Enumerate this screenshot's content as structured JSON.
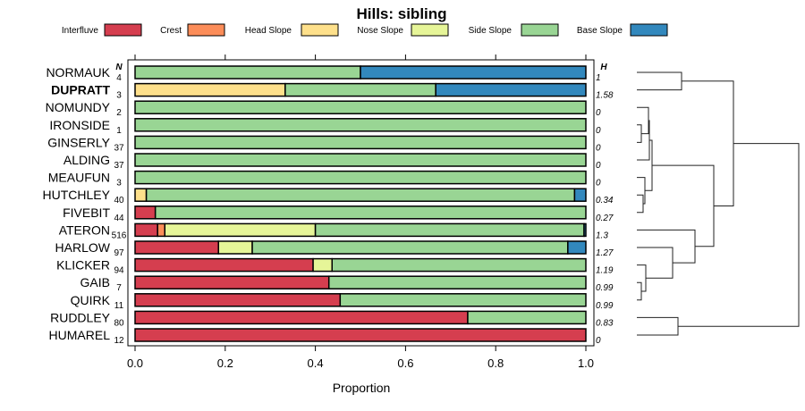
{
  "chart_data": {
    "type": "bar",
    "subtype": "stacked-horizontal-proportion",
    "title": "Hills: sibling",
    "xlabel": "Proportion",
    "xlim": [
      0,
      1
    ],
    "xticks": [
      "0.0",
      "0.2",
      "0.4",
      "0.6",
      "0.8",
      "1.0"
    ],
    "xtick_values": [
      0,
      0.2,
      0.4,
      0.6,
      0.8,
      1.0
    ],
    "n_header": "N",
    "h_header": "H",
    "legend_position": "top",
    "legend": [
      {
        "name": "Interfluve",
        "color": "#D53E4F"
      },
      {
        "name": "Crest",
        "color": "#FC8D59"
      },
      {
        "name": "Head Slope",
        "color": "#FEE08B"
      },
      {
        "name": "Nose Slope",
        "color": "#E6F598"
      },
      {
        "name": "Side Slope",
        "color": "#99D594"
      },
      {
        "name": "Base Slope",
        "color": "#3288BD"
      }
    ],
    "highlight": "DUPRATT",
    "rows": [
      {
        "name": "NORMAUK",
        "n": "4",
        "h": "1",
        "values": [
          0,
          0,
          0,
          0,
          0.5,
          0.5
        ]
      },
      {
        "name": "DUPRATT",
        "n": "3",
        "h": "1.58",
        "values": [
          0,
          0,
          0.333,
          0,
          0.334,
          0.333
        ]
      },
      {
        "name": "NOMUNDY",
        "n": "2",
        "h": "0",
        "values": [
          0,
          0,
          0,
          0,
          1,
          0
        ]
      },
      {
        "name": "IRONSIDE",
        "n": "1",
        "h": "0",
        "values": [
          0,
          0,
          0,
          0,
          1,
          0
        ]
      },
      {
        "name": "GINSERLY",
        "n": "37",
        "h": "0",
        "values": [
          0,
          0,
          0,
          0,
          1,
          0
        ]
      },
      {
        "name": "ALDING",
        "n": "37",
        "h": "0",
        "values": [
          0,
          0,
          0,
          0,
          1,
          0
        ]
      },
      {
        "name": "MEAUFUN",
        "n": "3",
        "h": "0",
        "values": [
          0,
          0,
          0,
          0,
          1,
          0
        ]
      },
      {
        "name": "HUTCHLEY",
        "n": "40",
        "h": "0.34",
        "values": [
          0,
          0,
          0.025,
          0,
          0.95,
          0.025
        ]
      },
      {
        "name": "FIVEBIT",
        "n": "44",
        "h": "0.27",
        "values": [
          0.045,
          0,
          0,
          0,
          0.955,
          0
        ]
      },
      {
        "name": "ATERON",
        "n": "516",
        "h": "1.3",
        "values": [
          0.05,
          0.016,
          0,
          0.334,
          0.596,
          0.004
        ]
      },
      {
        "name": "HARLOW",
        "n": "97",
        "h": "1.27",
        "values": [
          0.185,
          0,
          0,
          0.075,
          0.7,
          0.04
        ]
      },
      {
        "name": "KLICKER",
        "n": "94",
        "h": "1.19",
        "values": [
          0.395,
          0,
          0,
          0.042,
          0.563,
          0
        ]
      },
      {
        "name": "GAIB",
        "n": "7",
        "h": "0.99",
        "values": [
          0.43,
          0,
          0,
          0,
          0.57,
          0
        ]
      },
      {
        "name": "QUIRK",
        "n": "11",
        "h": "0.99",
        "values": [
          0.455,
          0,
          0,
          0,
          0.545,
          0
        ]
      },
      {
        "name": "RUDDLEY",
        "n": "80",
        "h": "0.83",
        "values": [
          0.738,
          0,
          0,
          0,
          0.262,
          0
        ]
      },
      {
        "name": "HUMAREL",
        "n": "12",
        "h": "0",
        "values": [
          1,
          0,
          0,
          0,
          0,
          0
        ]
      }
    ]
  }
}
